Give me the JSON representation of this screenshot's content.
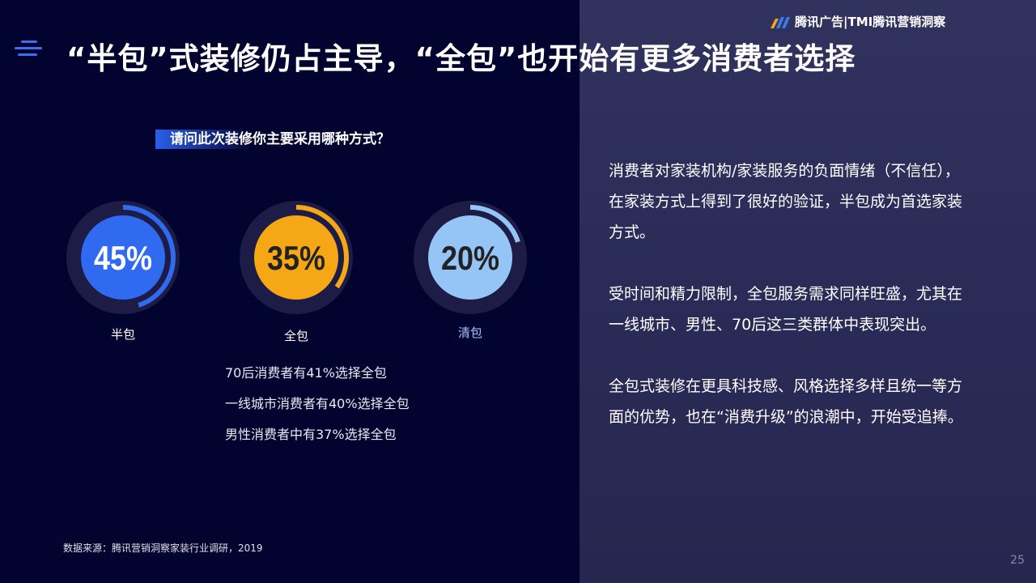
{
  "brand": {
    "text": "腾讯广告|TMI腾讯营销洞察"
  },
  "title": "“半包”式装修仍占主导，“全包”也开始有更多消费者选择",
  "question": "请问此次装修你主要采用哪种方式？",
  "chart_data": {
    "type": "gauge",
    "categories": [
      "半包",
      "全包",
      "清包"
    ],
    "values": [
      45,
      35,
      20
    ],
    "value_labels": [
      "45%",
      "35%",
      "20%"
    ],
    "colors": [
      "#2f6af0",
      "#f5a716",
      "#95c4f6"
    ],
    "label_colors": [
      "#ffffff",
      "#222222",
      "#222222"
    ],
    "track_color": "#1c1c46"
  },
  "stats": [
    "70后消费者有41%选择全包",
    "一线城市消费者有40%选择全包",
    "男性消费者中有37%选择全包"
  ],
  "paragraphs": [
    "消费者对家装机构/家装服务的负面情绪（不信任），在家装方式上得到了很好的验证，半包成为首选家装方式。",
    "受时间和精力限制，全包服务需求同样旺盛，尤其在一线城市、男性、70后这三类群体中表现突出。",
    "全包式装修在更具科技感、风格选择多样且统一等方面的优势，也在“消费升级”的浪潮中，开始受追捧。"
  ],
  "source": "数据来源：腾讯营销洞察家装行业调研，2019",
  "page_number": "25"
}
